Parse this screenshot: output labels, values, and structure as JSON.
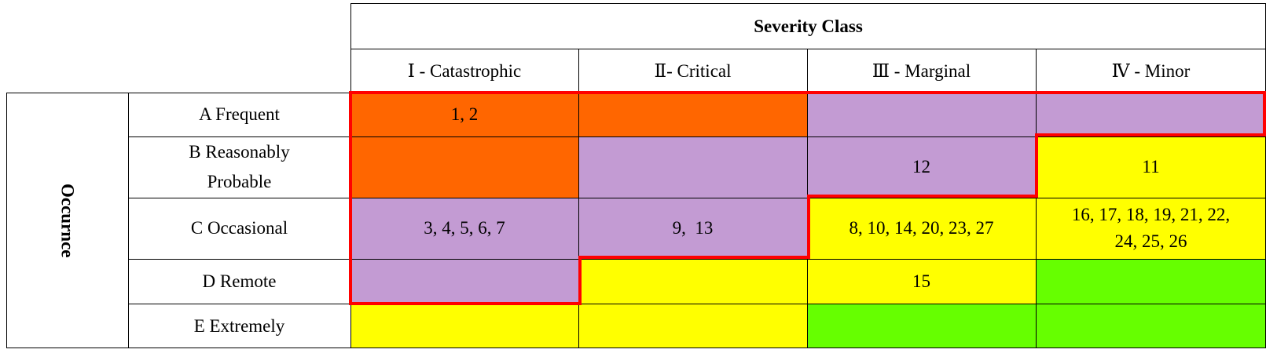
{
  "table": {
    "severity_title": "Severity Class",
    "occurrence_title": "Occurnce",
    "severity_classes": [
      "Ⅰ - Catastrophic",
      "Ⅱ- Critical",
      "Ⅲ - Marginal",
      "Ⅳ - Minor"
    ],
    "occurrence_levels": [
      "A Frequent",
      "B Reasonably Probable",
      "C Occasional",
      "D Remote",
      "E Extremely"
    ],
    "occurrence_level_lines": {
      "B": [
        "B Reasonably",
        "Probable"
      ]
    },
    "cells": [
      [
        "1, 2",
        "",
        "",
        ""
      ],
      [
        "",
        "",
        "12",
        "11"
      ],
      [
        "3, 4, 5, 6, 7",
        "9,  13",
        "8, 10, 14, 20, 23, 27",
        "16, 17, 18, 19, 21, 22, 24, 25, 26"
      ],
      [
        "",
        "",
        "15",
        ""
      ],
      [
        "",
        "",
        "",
        ""
      ]
    ],
    "cell_lines": {
      "C4": [
        "16, 17, 18, 19, 21, 22,",
        "24, 25, 26"
      ]
    },
    "colors": {
      "high": "#ff6600",
      "medium": "#c39bd3",
      "low": "#ffff00",
      "minimal": "#66ff00",
      "boundary": "#ff0000"
    },
    "cell_levels": [
      [
        "high",
        "high",
        "medium",
        "medium"
      ],
      [
        "high",
        "medium",
        "medium",
        "low"
      ],
      [
        "medium",
        "medium",
        "low",
        "low"
      ],
      [
        "medium",
        "low",
        "low",
        "minimal"
      ],
      [
        "low",
        "low",
        "minimal",
        "minimal"
      ]
    ]
  }
}
